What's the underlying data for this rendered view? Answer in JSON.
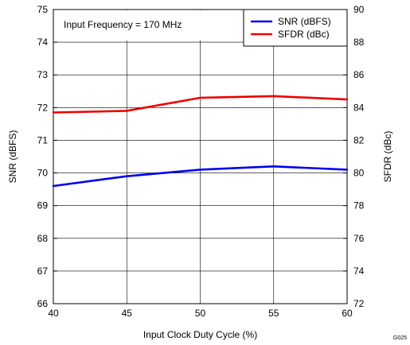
{
  "chart_data": {
    "type": "line",
    "title": "",
    "annotation": "Input Frequency = 170 MHz",
    "xlabel": "Input Clock Duty Cycle (%)",
    "ylabel_left": "SNR (dBFS)",
    "ylabel_right": "SFDR (dBc)",
    "x": [
      40,
      45,
      50,
      55,
      60
    ],
    "xlim": [
      40,
      60
    ],
    "x_ticks": [
      "40",
      "45",
      "50",
      "55",
      "60"
    ],
    "ylim_left": [
      66,
      75
    ],
    "y_ticks_left": [
      "66",
      "67",
      "68",
      "69",
      "70",
      "71",
      "72",
      "73",
      "74",
      "75"
    ],
    "ylim_right": [
      72,
      90
    ],
    "y_ticks_right": [
      "72",
      "74",
      "76",
      "78",
      "80",
      "82",
      "84",
      "86",
      "88",
      "90"
    ],
    "grid": true,
    "legend_position": "top-right",
    "figure_id": "G025",
    "series": [
      {
        "name": "SNR (dBFS)",
        "axis": "left",
        "color": "#0000ee",
        "values": [
          69.6,
          69.9,
          70.1,
          70.2,
          70.1
        ]
      },
      {
        "name": "SFDR (dBc)",
        "axis": "right",
        "color": "#ee0000",
        "values": [
          83.7,
          83.8,
          84.6,
          84.7,
          84.5
        ]
      }
    ]
  }
}
